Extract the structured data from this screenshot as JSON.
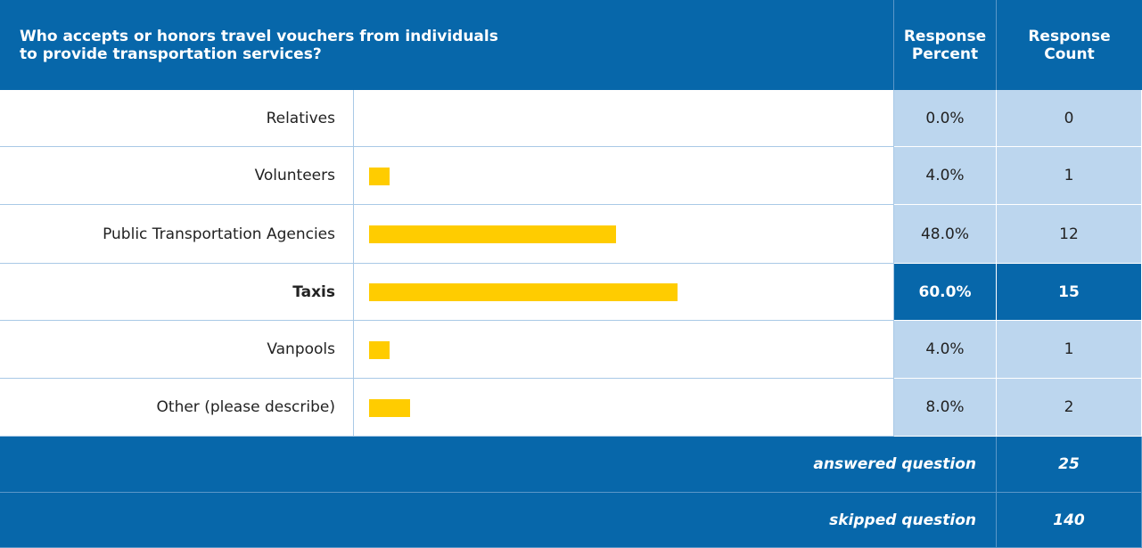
{
  "table": {
    "header": {
      "question": "Who accepts or honors travel vouchers from individuals to provide transportation services?",
      "percent": "Response Percent",
      "count": "Response Count"
    },
    "bar_color": "#ffcc00",
    "rows": [
      {
        "label": "Relatives",
        "percent": 0,
        "percent_label": "0.0%",
        "count": 0
      },
      {
        "label": "Volunteers",
        "percent": 4,
        "percent_label": "4.0%",
        "count": 1
      },
      {
        "label": "Public Transportation Agencies",
        "percent": 48,
        "percent_label": "48.0%",
        "count": 12
      },
      {
        "label": "Taxis",
        "percent": 60,
        "percent_label": "60.0%",
        "count": 15,
        "highlighted": true
      },
      {
        "label": "Vanpools",
        "percent": 4,
        "percent_label": "4.0%",
        "count": 1
      },
      {
        "label": "Other (please describe)",
        "percent": 8,
        "percent_label": "8.0%",
        "count": 2
      }
    ],
    "footer": [
      {
        "label": "answered question",
        "count": 25
      },
      {
        "label": "skipped question",
        "count": 140
      }
    ]
  }
}
